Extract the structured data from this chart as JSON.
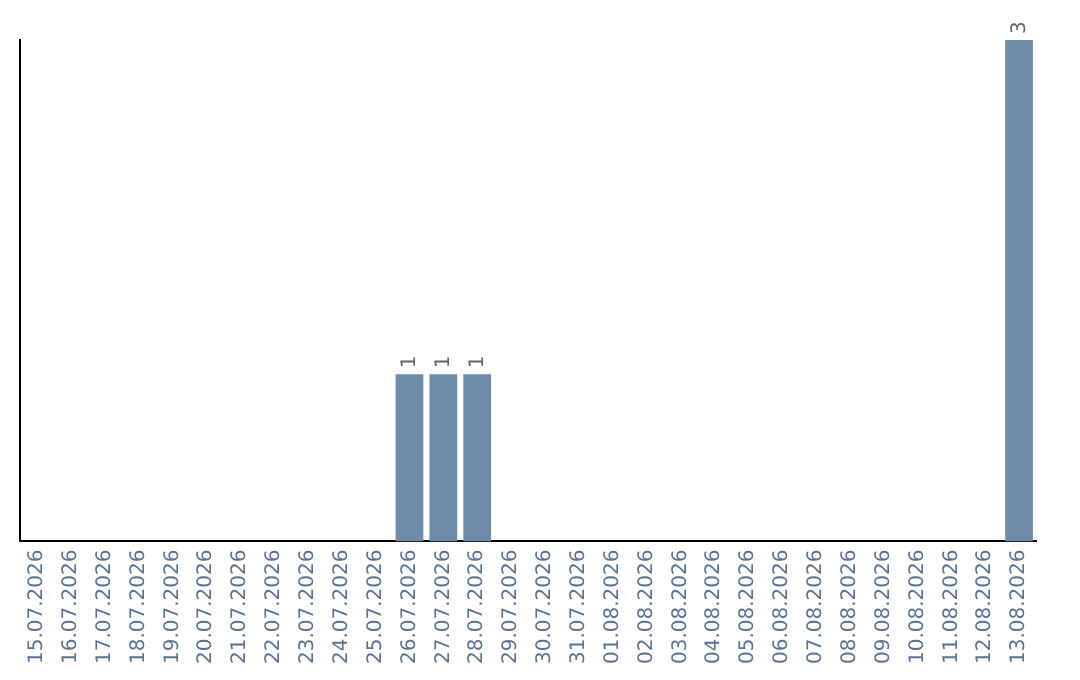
{
  "chart_data": {
    "type": "bar",
    "categories": [
      "15.07.2026",
      "16.07.2026",
      "17.07.2026",
      "18.07.2026",
      "19.07.2026",
      "20.07.2026",
      "21.07.2026",
      "22.07.2026",
      "23.07.2026",
      "24.07.2026",
      "25.07.2026",
      "26.07.2026",
      "27.07.2026",
      "28.07.2026",
      "29.07.2026",
      "30.07.2026",
      "31.07.2026",
      "01.08.2026",
      "02.08.2026",
      "03.08.2026",
      "04.08.2026",
      "05.08.2026",
      "06.08.2026",
      "07.08.2026",
      "08.08.2026",
      "09.08.2026",
      "10.08.2026",
      "11.08.2026",
      "12.08.2026",
      "13.08.2026"
    ],
    "values": [
      0,
      0,
      0,
      0,
      0,
      0,
      0,
      0,
      0,
      0,
      0,
      1,
      1,
      1,
      0,
      0,
      0,
      0,
      0,
      0,
      0,
      0,
      0,
      0,
      0,
      0,
      0,
      0,
      0,
      3
    ],
    "value_labels": [
      null,
      null,
      null,
      null,
      null,
      null,
      null,
      null,
      null,
      null,
      null,
      "1",
      "1",
      "1",
      null,
      null,
      null,
      null,
      null,
      null,
      null,
      null,
      null,
      null,
      null,
      null,
      null,
      null,
      null,
      "3"
    ],
    "color": "#6e8caa",
    "ylim": [
      0,
      3
    ],
    "grid": false,
    "legend": false,
    "tick_labels": "x"
  }
}
